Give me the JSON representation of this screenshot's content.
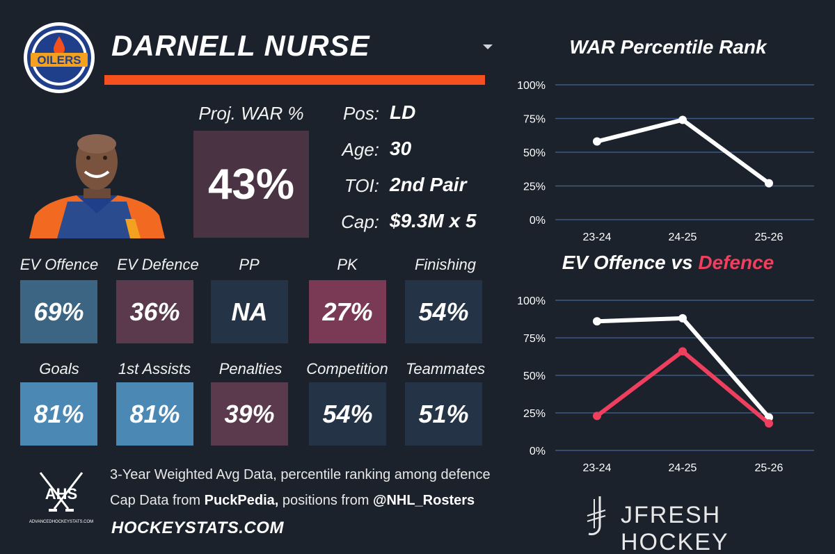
{
  "header": {
    "player_name": "DARNELL NURSE",
    "team_logo_text": "OILERS"
  },
  "proj_war": {
    "label": "Proj. WAR %",
    "value": "43%"
  },
  "info": [
    {
      "label": "Pos:",
      "value": "LD"
    },
    {
      "label": "Age:",
      "value": "30"
    },
    {
      "label": "TOI:",
      "value": "2nd Pair"
    },
    {
      "label": "Cap:",
      "value": "$9.3M x 5"
    }
  ],
  "stats": [
    {
      "label": "EV Offence",
      "value": "69%",
      "color": "#3c6584"
    },
    {
      "label": "EV Defence",
      "value": "36%",
      "color": "#5b3a4d"
    },
    {
      "label": "PP",
      "value": "NA",
      "color": "#243446"
    },
    {
      "label": "PK",
      "value": "27%",
      "color": "#7a3a55"
    },
    {
      "label": "Finishing",
      "value": "54%",
      "color": "#243446"
    },
    {
      "label": "Goals",
      "value": "81%",
      "color": "#4c88b4"
    },
    {
      "label": "1st Assists",
      "value": "81%",
      "color": "#4c88b4"
    },
    {
      "label": "Penalties",
      "value": "39%",
      "color": "#5b3a4d"
    },
    {
      "label": "Competition",
      "value": "54%",
      "color": "#243446"
    },
    {
      "label": "Teammates",
      "value": "51%",
      "color": "#243446"
    }
  ],
  "footer": {
    "ahs_logo_text": "AHS",
    "ahs_site_text": "ADVANCEDHOCKEYSTATS.COM",
    "line1": "3-Year Weighted Avg Data, percentile ranking among defence",
    "line2_prefix": "Cap Data from ",
    "line2_source1": "PuckPedia,",
    "line2_middle": " positions from ",
    "line2_source2": "@NHL_Rosters",
    "site": "HOCKEYSTATS.COM",
    "brand": "JFRESH HOCKEY"
  },
  "chart_data": [
    {
      "type": "line",
      "title": "WAR Percentile Rank",
      "categories": [
        "23-24",
        "24-25",
        "25-26"
      ],
      "y_ticks": [
        "100%",
        "75%",
        "50%",
        "25%",
        "0%"
      ],
      "ylim": [
        0,
        100
      ],
      "series": [
        {
          "name": "WAR",
          "values": [
            58,
            74,
            27
          ],
          "color": "#ffffff"
        }
      ]
    },
    {
      "type": "line",
      "title_part1": "EV Offence vs ",
      "title_part2": "Defence",
      "title_color2": "#ef3f5f",
      "categories": [
        "23-24",
        "24-25",
        "25-26"
      ],
      "y_ticks": [
        "100%",
        "75%",
        "50%",
        "25%",
        "0%"
      ],
      "ylim": [
        0,
        100
      ],
      "series": [
        {
          "name": "EV Offence",
          "values": [
            86,
            88,
            22
          ],
          "color": "#ffffff"
        },
        {
          "name": "EV Defence",
          "values": [
            23,
            66,
            18
          ],
          "color": "#ef3f5f"
        }
      ]
    }
  ]
}
